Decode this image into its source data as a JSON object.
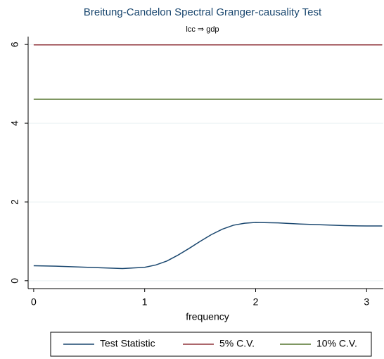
{
  "chart_data": {
    "type": "line",
    "title": "Breitung-Candelon Spectral Granger-causality Test",
    "subtitle": "lcc ⇒ gdp",
    "x_label": "frequency",
    "xlim": [
      -0.05,
      3.15
    ],
    "xticks": [
      0,
      1,
      2,
      3
    ],
    "ylim": [
      -0.2,
      6.2
    ],
    "yticks": [
      0,
      2,
      4,
      6
    ],
    "grid": true,
    "legend": "bottom",
    "series": [
      {
        "name": "Test Statistic",
        "color": "#1a476f",
        "x": [
          0,
          0.2,
          0.4,
          0.6,
          0.8,
          1.0,
          1.1,
          1.2,
          1.3,
          1.4,
          1.5,
          1.6,
          1.7,
          1.8,
          1.9,
          2.0,
          2.2,
          2.4,
          2.6,
          2.8,
          3.0,
          3.14
        ],
        "values": [
          0.38,
          0.37,
          0.35,
          0.33,
          0.31,
          0.34,
          0.4,
          0.5,
          0.65,
          0.82,
          1.0,
          1.17,
          1.31,
          1.41,
          1.46,
          1.48,
          1.47,
          1.44,
          1.42,
          1.4,
          1.39,
          1.39
        ]
      },
      {
        "name": "5% C.V.",
        "color": "#90353b",
        "x": [
          0,
          3.14
        ],
        "values": [
          5.99,
          5.99
        ]
      },
      {
        "name": "10% C.V.",
        "color": "#55752f",
        "x": [
          0,
          3.14
        ],
        "values": [
          4.61,
          4.61
        ]
      }
    ]
  }
}
